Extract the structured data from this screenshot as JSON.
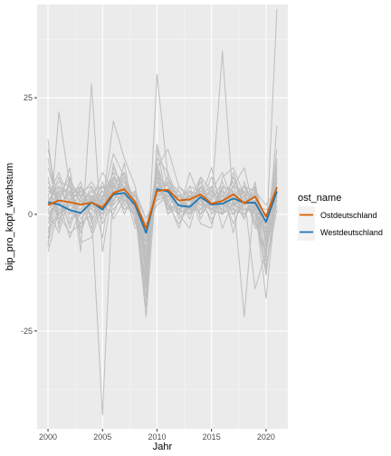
{
  "chart_data": {
    "type": "line",
    "title": "",
    "xlabel": "Jahr",
    "ylabel": "bip_pro_kopf_wachstum",
    "xlim": [
      1999,
      2022
    ],
    "ylim": [
      -46,
      45
    ],
    "x_ticks": [
      2000,
      2005,
      2010,
      2015,
      2020
    ],
    "y_ticks": [
      -25,
      0,
      25
    ],
    "x_tick_labels": [
      "2000",
      "2005",
      "2010",
      "2015",
      "2020"
    ],
    "y_tick_labels": [
      "-25",
      "0",
      "25"
    ],
    "grid": true,
    "legend": {
      "title": "ost_name",
      "position": "right"
    },
    "background_series": {
      "name": "",
      "color": "#bebebe",
      "years": [
        2000,
        2001,
        2002,
        2003,
        2004,
        2005,
        2006,
        2007,
        2008,
        2009,
        2010,
        2011,
        2012,
        2013,
        2014,
        2015,
        2016,
        2017,
        2018,
        2019,
        2020,
        2021
      ],
      "lines": [
        [
          16,
          -3,
          8,
          2,
          4,
          0,
          10,
          5,
          2,
          -20,
          15,
          6,
          1,
          3,
          6,
          1,
          0,
          9,
          2,
          5,
          -6,
          44
        ],
        [
          -7,
          22,
          6,
          4,
          7,
          3,
          13,
          8,
          1,
          -15,
          30,
          8,
          3,
          -1,
          5,
          3,
          35,
          2,
          6,
          2,
          -18,
          5
        ],
        [
          -5,
          4,
          8,
          -8,
          28,
          -8,
          6,
          9,
          2,
          -6,
          6,
          2,
          0,
          9,
          3,
          10,
          0,
          4,
          -22,
          6,
          -10,
          19
        ],
        [
          -3,
          0,
          -4,
          -2,
          0,
          -43,
          8,
          4,
          1,
          -22,
          10,
          4,
          2,
          4,
          -2,
          -3,
          8,
          10,
          4,
          -16,
          -8,
          4
        ],
        [
          14,
          2,
          10,
          -6,
          -5,
          2,
          20,
          12,
          6,
          -8,
          8,
          6,
          4,
          0,
          8,
          5,
          9,
          2,
          4,
          6,
          -2,
          8
        ],
        [
          4,
          9,
          2,
          6,
          3,
          6,
          4,
          8,
          0,
          -10,
          10,
          14,
          6,
          4,
          2,
          8,
          2,
          6,
          10,
          0,
          -4,
          12
        ],
        [
          0,
          3,
          1,
          -2,
          4,
          1,
          6,
          5,
          3,
          -2,
          2,
          4,
          1,
          0,
          6,
          2,
          4,
          3,
          -1,
          5,
          2,
          6
        ],
        [
          6,
          0,
          5,
          3,
          -3,
          4,
          9,
          2,
          4,
          -3,
          7,
          3,
          -3,
          4,
          2,
          1,
          6,
          -4,
          7,
          1,
          -2,
          8
        ],
        [
          -2,
          5,
          -3,
          4,
          1,
          7,
          -1,
          3,
          0,
          -6,
          4,
          8,
          0,
          5,
          1,
          6,
          0,
          2,
          3,
          4,
          -5,
          3
        ],
        [
          10,
          2,
          0,
          5,
          6,
          -2,
          3,
          7,
          3,
          -12,
          9,
          0,
          4,
          3,
          8,
          0,
          3,
          6,
          1,
          2,
          -8,
          10
        ],
        [
          2,
          7,
          6,
          -3,
          2,
          5,
          2,
          11,
          -2,
          -4,
          6,
          5,
          2,
          6,
          -1,
          4,
          5,
          0,
          4,
          -2,
          -3,
          5
        ],
        [
          -8,
          1,
          3,
          2,
          5,
          2,
          7,
          0,
          5,
          -1,
          3,
          7,
          5,
          1,
          3,
          -1,
          2,
          5,
          0,
          3,
          -12,
          6
        ],
        [
          1,
          -4,
          4,
          6,
          -1,
          3,
          8,
          6,
          1,
          -8,
          5,
          2,
          -2,
          2,
          5,
          3,
          7,
          1,
          5,
          -3,
          -1,
          9
        ],
        [
          5,
          4,
          -1,
          0,
          3,
          9,
          5,
          4,
          -1,
          -14,
          12,
          9,
          3,
          0,
          4,
          2,
          1,
          8,
          2,
          6,
          -6,
          2
        ],
        [
          3,
          1,
          2,
          1,
          2,
          0,
          4,
          3,
          2,
          -5,
          6,
          3,
          2,
          2,
          3,
          1,
          3,
          2,
          1,
          1,
          -2,
          4
        ],
        [
          -4,
          6,
          1,
          3,
          0,
          4,
          3,
          9,
          2,
          -10,
          8,
          1,
          6,
          3,
          0,
          5,
          2,
          4,
          6,
          0,
          -9,
          7
        ],
        [
          8,
          -2,
          7,
          4,
          4,
          -5,
          11,
          3,
          0,
          -7,
          4,
          5,
          0,
          -3,
          6,
          2,
          4,
          -2,
          3,
          4,
          -4,
          14
        ],
        [
          0,
          3,
          -5,
          1,
          6,
          2,
          0,
          6,
          4,
          -3,
          7,
          6,
          3,
          4,
          2,
          6,
          -3,
          3,
          5,
          2,
          1,
          3
        ],
        [
          12,
          0,
          3,
          7,
          -2,
          6,
          6,
          1,
          3,
          -18,
          14,
          2,
          1,
          5,
          4,
          -2,
          6,
          5,
          -1,
          7,
          -7,
          11
        ],
        [
          -6,
          2,
          5,
          -1,
          2,
          1,
          5,
          5,
          -3,
          -2,
          3,
          4,
          4,
          1,
          1,
          3,
          1,
          0,
          4,
          -1,
          -11,
          1
        ],
        [
          2,
          8,
          0,
          2,
          3,
          3,
          9,
          7,
          1,
          -9,
          9,
          0,
          2,
          6,
          5,
          4,
          4,
          7,
          2,
          3,
          -5,
          6
        ],
        [
          4,
          -1,
          3,
          5,
          1,
          5,
          1,
          4,
          5,
          -11,
          5,
          7,
          -1,
          2,
          7,
          0,
          5,
          3,
          6,
          5,
          -3,
          9
        ],
        [
          -1,
          4,
          6,
          0,
          4,
          -1,
          7,
          2,
          0,
          -6,
          11,
          3,
          5,
          0,
          3,
          5,
          2,
          1,
          0,
          2,
          -13,
          4
        ],
        [
          7,
          2,
          1,
          3,
          2,
          2,
          3,
          8,
          2,
          -13,
          6,
          5,
          3,
          3,
          2,
          2,
          0,
          4,
          3,
          0,
          -2,
          7
        ],
        [
          3,
          6,
          4,
          4,
          -4,
          3,
          5,
          1,
          3,
          -4,
          4,
          8,
          1,
          4,
          4,
          6,
          3,
          2,
          4,
          4,
          -6,
          2
        ],
        [
          -3,
          0,
          2,
          2,
          5,
          6,
          2,
          5,
          -1,
          -8,
          7,
          2,
          0,
          2,
          6,
          1,
          6,
          5,
          1,
          1,
          -4,
          8
        ],
        [
          6,
          3,
          -2,
          6,
          1,
          0,
          8,
          3,
          4,
          -1,
          5,
          4,
          4,
          5,
          0,
          3,
          1,
          6,
          5,
          -2,
          -8,
          5
        ],
        [
          1,
          5,
          5,
          -4,
          3,
          4,
          4,
          6,
          1,
          -16,
          10,
          1,
          2,
          1,
          5,
          4,
          4,
          0,
          2,
          3,
          0,
          3
        ]
      ]
    },
    "series": [
      {
        "name": "Ostdeutschland",
        "color": "#d95f02",
        "x": [
          2000,
          2001,
          2002,
          2003,
          2004,
          2005,
          2006,
          2007,
          2008,
          2009,
          2010,
          2011,
          2012,
          2013,
          2014,
          2015,
          2016,
          2017,
          2018,
          2019,
          2020,
          2021
        ],
        "values": [
          2.0,
          3.0,
          2.6,
          2.1,
          2.5,
          1.5,
          4.6,
          5.4,
          2.6,
          -3.0,
          5.0,
          5.3,
          3.0,
          3.2,
          4.3,
          2.3,
          2.9,
          4.3,
          2.4,
          3.8,
          -0.5,
          5.8
        ]
      },
      {
        "name": "Westdeutschland",
        "color": "#1f78b4",
        "x": [
          2000,
          2001,
          2002,
          2003,
          2004,
          2005,
          2006,
          2007,
          2008,
          2009,
          2010,
          2011,
          2012,
          2013,
          2014,
          2015,
          2016,
          2017,
          2018,
          2019,
          2020,
          2021
        ],
        "values": [
          2.6,
          2.1,
          0.9,
          0.3,
          2.6,
          1.0,
          4.3,
          4.6,
          2.0,
          -4.0,
          5.4,
          4.9,
          1.9,
          1.6,
          3.7,
          2.1,
          2.3,
          3.4,
          2.5,
          2.5,
          -1.6,
          4.9
        ]
      }
    ]
  }
}
